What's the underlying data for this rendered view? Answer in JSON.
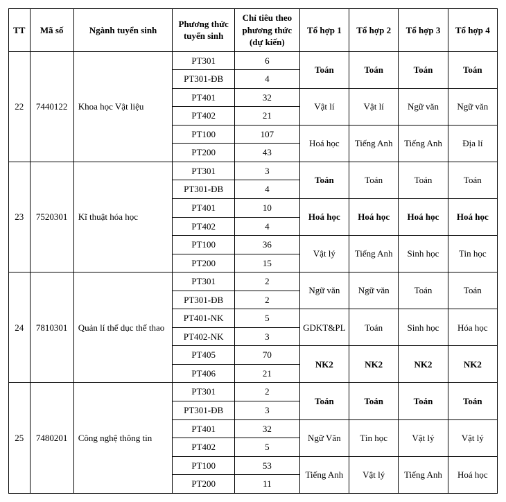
{
  "headers": {
    "tt": "TT",
    "maso": "Mã số",
    "nganh": "Ngành tuyển sinh",
    "phuongthuc": "Phương thức tuyển sinh",
    "chitieu": "Chỉ tiêu theo phương thức (dự kiến)",
    "th1": "Tổ hợp 1",
    "th2": "Tổ hợp 2",
    "th3": "Tổ hợp 3",
    "th4": "Tổ hợp 4"
  },
  "rows": [
    {
      "tt": "22",
      "maso": "7440122",
      "nganh": "Khoa học Vật liệu",
      "methods": [
        {
          "pt": "PT301",
          "ct": "6"
        },
        {
          "pt": "PT301-ĐB",
          "ct": "4"
        },
        {
          "pt": "PT401",
          "ct": "32"
        },
        {
          "pt": "PT402",
          "ct": "21"
        },
        {
          "pt": "PT100",
          "ct": "107"
        },
        {
          "pt": "PT200",
          "ct": "43"
        }
      ],
      "subjects": [
        {
          "th1": "Toán",
          "th2": "Toán",
          "th3": "Toán",
          "th4": "Toán",
          "bold": [
            1,
            2,
            3,
            4
          ]
        },
        {
          "th1": "Vật lí",
          "th2": "Vật lí",
          "th3": "Ngữ văn",
          "th4": "Ngữ văn",
          "bold": []
        },
        {
          "th1": "Hoá học",
          "th2": "Tiếng Anh",
          "th3": "Tiếng Anh",
          "th4": "Địa lí",
          "bold": []
        }
      ]
    },
    {
      "tt": "23",
      "maso": "7520301",
      "nganh": "Kĩ thuật hóa học",
      "methods": [
        {
          "pt": "PT301",
          "ct": "3"
        },
        {
          "pt": "PT301-ĐB",
          "ct": "4"
        },
        {
          "pt": "PT401",
          "ct": "10"
        },
        {
          "pt": "PT402",
          "ct": "4"
        },
        {
          "pt": "PT100",
          "ct": "36"
        },
        {
          "pt": "PT200",
          "ct": "15"
        }
      ],
      "subjects": [
        {
          "th1": "Toán",
          "th2": "Toán",
          "th3": "Toán",
          "th4": "Toán",
          "bold": [
            1
          ]
        },
        {
          "th1": "Hoá học",
          "th2": "Hoá học",
          "th3": "Hoá học",
          "th4": "Hoá học",
          "bold": [
            1,
            2,
            3,
            4
          ]
        },
        {
          "th1": "Vật lý",
          "th2": "Tiếng Anh",
          "th3": "Sinh học",
          "th4": "Tin học",
          "bold": []
        }
      ]
    },
    {
      "tt": "24",
      "maso": "7810301",
      "nganh": "Quản lí thể dục thể thao",
      "methods": [
        {
          "pt": "PT301",
          "ct": "2"
        },
        {
          "pt": "PT301-ĐB",
          "ct": "2"
        },
        {
          "pt": "PT401-NK",
          "ct": "5"
        },
        {
          "pt": "PT402-NK",
          "ct": "3"
        },
        {
          "pt": "PT405",
          "ct": "70"
        },
        {
          "pt": "PT406",
          "ct": "21"
        }
      ],
      "subjects": [
        {
          "th1": "Ngữ văn",
          "th2": "Ngữ văn",
          "th3": "Toán",
          "th4": "Toán",
          "bold": []
        },
        {
          "th1": "GDKT&PL",
          "th2": "Toán",
          "th3": "Sinh học",
          "th4": "Hóa học",
          "bold": []
        },
        {
          "th1": "NK2",
          "th2": "NK2",
          "th3": "NK2",
          "th4": "NK2",
          "bold": [
            1,
            2,
            3,
            4
          ]
        }
      ]
    },
    {
      "tt": "25",
      "maso": "7480201",
      "nganh": "Công nghệ thông tin",
      "methods": [
        {
          "pt": "PT301",
          "ct": "2"
        },
        {
          "pt": "PT301-ĐB",
          "ct": "3"
        },
        {
          "pt": "PT401",
          "ct": "32"
        },
        {
          "pt": "PT402",
          "ct": "5"
        },
        {
          "pt": "PT100",
          "ct": "53"
        },
        {
          "pt": "PT200",
          "ct": "11"
        }
      ],
      "subjects": [
        {
          "th1": "Toán",
          "th2": "Toán",
          "th3": "Toán",
          "th4": "Toán",
          "bold": [
            1,
            2,
            3,
            4
          ]
        },
        {
          "th1": "Ngữ Văn",
          "th2": "Tin học",
          "th3": "Vật lý",
          "th4": "Vật lý",
          "bold": []
        },
        {
          "th1": "Tiếng Anh",
          "th2": "Vật lý",
          "th3": "Tiếng Anh",
          "th4": "Hoá học",
          "bold": []
        }
      ]
    }
  ]
}
